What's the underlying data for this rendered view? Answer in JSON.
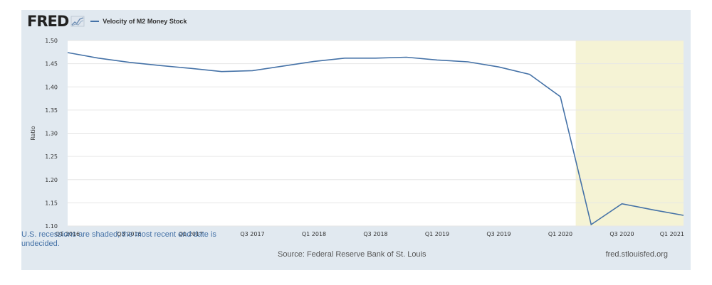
{
  "header": {
    "logo_text": "FRED",
    "logo_icon": "chart-line-icon",
    "legend_label": "Velocity of M2 Money Stock"
  },
  "footer": {
    "note": "U.S. recessions are shaded; the most recent end date is undecided.",
    "source": "Source: Federal Reserve Bank of St. Louis",
    "site": "fred.stlouisfed.org"
  },
  "colors": {
    "line": "#4572a7",
    "recession": "#f5f3d5",
    "panel": "#e1e9f0",
    "plot_bg": "#ffffff",
    "grid": "#e6e6e6"
  },
  "chart_data": {
    "type": "line",
    "title": "",
    "xlabel": "",
    "ylabel": "Ratio",
    "ylim": [
      1.1,
      1.5
    ],
    "yticks": [
      "1.10",
      "1.15",
      "1.20",
      "1.25",
      "1.30",
      "1.35",
      "1.40",
      "1.45",
      "1.50"
    ],
    "xticks": [
      "Q1 2016",
      "Q3 2016",
      "Q1 2017",
      "Q3 2017",
      "Q1 2018",
      "Q3 2018",
      "Q1 2019",
      "Q3 2019",
      "Q1 2020",
      "Q3 2020",
      "Q1 2021"
    ],
    "x": [
      "Q1 2016",
      "Q2 2016",
      "Q3 2016",
      "Q4 2016",
      "Q1 2017",
      "Q2 2017",
      "Q3 2017",
      "Q4 2017",
      "Q1 2018",
      "Q2 2018",
      "Q3 2018",
      "Q4 2018",
      "Q1 2019",
      "Q2 2019",
      "Q3 2019",
      "Q4 2019",
      "Q1 2020",
      "Q2 2020",
      "Q3 2020",
      "Q4 2020",
      "Q1 2021"
    ],
    "series": [
      {
        "name": "Velocity of M2 Money Stock",
        "values": [
          1.474,
          1.462,
          1.453,
          1.446,
          1.44,
          1.433,
          1.435,
          1.445,
          1.455,
          1.462,
          1.462,
          1.464,
          1.458,
          1.454,
          1.443,
          1.427,
          1.379,
          1.103,
          1.148,
          1.135,
          1.123
        ]
      }
    ],
    "recession": {
      "start": "Q2 2020",
      "end": "Q1 2021",
      "end_undecided": true
    },
    "grid": true,
    "legend": "top-left"
  }
}
